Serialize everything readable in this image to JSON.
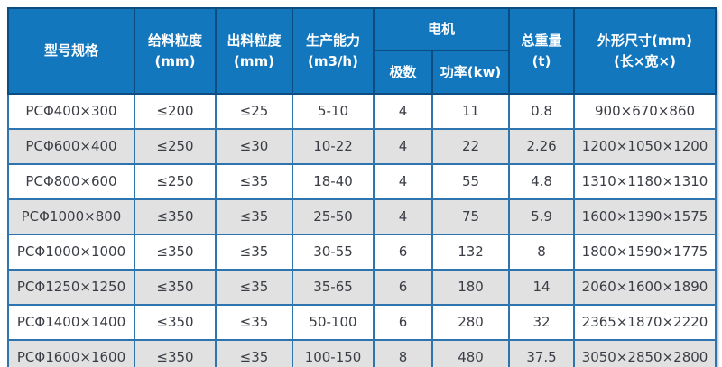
{
  "colors": {
    "header_bg": "#1377be",
    "header_border": "#0c4c80",
    "grid_border": "#2e74ae",
    "stripe_bg": "#e1e1e1",
    "row_bg": "#ffffff",
    "header_text": "#ffffff",
    "cell_text": "#3a3d44"
  },
  "table": {
    "header": {
      "model": "型号规格",
      "feed": "给料粒度\n(mm)",
      "out": "出料粒度\n(mm)",
      "capacity": "生产能力\n(m3/h)",
      "motor": "电机",
      "poles": "极数",
      "power": "功率(kw)",
      "weight": "总重量\n(t)",
      "dims": "外形尺寸(mm)\n(长×宽×)"
    },
    "rows": [
      {
        "model": "PCΦ400×300",
        "feed": "≤200",
        "out": "≤25",
        "capacity": "5-10",
        "poles": "4",
        "power": "11",
        "weight": "0.8",
        "dims": "900×670×860"
      },
      {
        "model": "PCΦ600×400",
        "feed": "≤250",
        "out": "≤30",
        "capacity": "10-22",
        "poles": "4",
        "power": "22",
        "weight": "2.26",
        "dims": "1200×1050×1200"
      },
      {
        "model": "PCΦ800×600",
        "feed": "≤250",
        "out": "≤35",
        "capacity": "18-40",
        "poles": "4",
        "power": "55",
        "weight": "4.8",
        "dims": "1310×1180×1310"
      },
      {
        "model": "PCΦ1000×800",
        "feed": "≤350",
        "out": "≤35",
        "capacity": "25-50",
        "poles": "4",
        "power": "75",
        "weight": "5.9",
        "dims": "1600×1390×1575"
      },
      {
        "model": "PCΦ1000×1000",
        "feed": "≤350",
        "out": "≤35",
        "capacity": "30-55",
        "poles": "6",
        "power": "132",
        "weight": "8",
        "dims": "1800×1590×1775"
      },
      {
        "model": "PCΦ1250×1250",
        "feed": "≤350",
        "out": "≤35",
        "capacity": "35-65",
        "poles": "6",
        "power": "180",
        "weight": "14",
        "dims": "2060×1600×1890"
      },
      {
        "model": "PCΦ1400×1400",
        "feed": "≤350",
        "out": "≤35",
        "capacity": "50-100",
        "poles": "6",
        "power": "280",
        "weight": "32",
        "dims": "2365×1870×2220"
      },
      {
        "model": "PCΦ1600×1600",
        "feed": "≤350",
        "out": "≤35",
        "capacity": "100-150",
        "poles": "8",
        "power": "480",
        "weight": "37.5",
        "dims": "3050×2850×2800"
      }
    ]
  },
  "chart_data": {
    "type": "table",
    "title": "",
    "columns": [
      "型号规格",
      "给料粒度(mm)",
      "出料粒度(mm)",
      "生产能力(m3/h)",
      "电机 极数",
      "电机 功率(kw)",
      "总重量(t)",
      "外形尺寸(mm)(长×宽×)"
    ],
    "rows": [
      [
        "PCΦ400×300",
        "≤200",
        "≤25",
        "5-10",
        "4",
        "11",
        "0.8",
        "900×670×860"
      ],
      [
        "PCΦ600×400",
        "≤250",
        "≤30",
        "10-22",
        "4",
        "22",
        "2.26",
        "1200×1050×1200"
      ],
      [
        "PCΦ800×600",
        "≤250",
        "≤35",
        "18-40",
        "4",
        "55",
        "4.8",
        "1310×1180×1310"
      ],
      [
        "PCΦ1000×800",
        "≤350",
        "≤35",
        "25-50",
        "4",
        "75",
        "5.9",
        "1600×1390×1575"
      ],
      [
        "PCΦ1000×1000",
        "≤350",
        "≤35",
        "30-55",
        "6",
        "132",
        "8",
        "1800×1590×1775"
      ],
      [
        "PCΦ1250×1250",
        "≤350",
        "≤35",
        "35-65",
        "6",
        "180",
        "14",
        "2060×1600×1890"
      ],
      [
        "PCΦ1400×1400",
        "≤350",
        "≤35",
        "50-100",
        "6",
        "280",
        "32",
        "2365×1870×2220"
      ],
      [
        "PCΦ1600×1600",
        "≤350",
        "≤35",
        "100-150",
        "8",
        "480",
        "37.5",
        "3050×2850×2800"
      ]
    ]
  }
}
